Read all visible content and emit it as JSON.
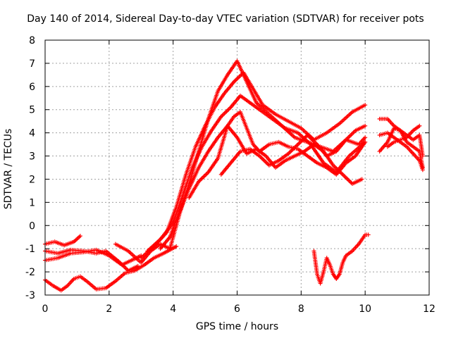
{
  "chart_data": {
    "type": "scatter",
    "title": "Day 140 of 2014, Sidereal Day-to-day VTEC variation (SDTVAR) for receiver pots",
    "xlabel": "GPS time / hours",
    "ylabel": "SDTVAR / TECUs",
    "xlim": [
      0,
      12
    ],
    "ylim": [
      -3,
      8
    ],
    "xticks": [
      "0",
      "2",
      "4",
      "6",
      "8",
      "10",
      "12"
    ],
    "yticks": [
      "-3",
      "-2",
      "-1",
      "0",
      "1",
      "2",
      "3",
      "4",
      "5",
      "6",
      "7",
      "8"
    ],
    "grid": true,
    "marker": "+",
    "color": "#ff0000",
    "series": [
      {
        "x": [
          0,
          0.3,
          0.6,
          0.9,
          1.1
        ],
        "y": [
          -0.8,
          -0.7,
          -0.85,
          -0.7,
          -0.45
        ]
      },
      {
        "x": [
          0,
          0.4,
          0.8,
          1.2,
          1.6,
          2.0,
          2.4,
          2.7,
          3.0
        ],
        "y": [
          -1.5,
          -1.4,
          -1.2,
          -1.15,
          -1.05,
          -1.3,
          -1.7,
          -1.5,
          -1.3
        ]
      },
      {
        "x": [
          0,
          0.4,
          0.8,
          1.2,
          1.6,
          1.9,
          2.3,
          2.6,
          2.9
        ],
        "y": [
          -1.1,
          -1.2,
          -1.05,
          -1.1,
          -1.2,
          -1.1,
          -1.55,
          -1.95,
          -1.75
        ]
      },
      {
        "x": [
          0,
          0.25,
          0.5,
          0.7,
          0.9,
          1.1,
          1.3,
          1.6,
          1.9,
          2.2,
          2.5,
          2.8,
          3.1,
          3.4,
          3.7,
          3.9,
          4.1
        ],
        "y": [
          -2.35,
          -2.6,
          -2.8,
          -2.6,
          -2.3,
          -2.2,
          -2.4,
          -2.75,
          -2.7,
          -2.4,
          -2.05,
          -1.95,
          -1.7,
          -1.4,
          -1.2,
          -1.05,
          -0.9
        ]
      },
      {
        "x": [
          2.2,
          2.6,
          3.0,
          3.3,
          3.6,
          3.9,
          4.2,
          4.5,
          4.8,
          5.1,
          5.4,
          5.7,
          6.0,
          6.3,
          6.6,
          7.0,
          7.4,
          7.8,
          8.2,
          8.6,
          9.0,
          9.4,
          9.8,
          10.0
        ],
        "y": [
          -0.8,
          -1.1,
          -1.6,
          -1.1,
          -0.8,
          -1.0,
          0.5,
          1.8,
          3.2,
          4.6,
          5.8,
          6.5,
          7.1,
          6.2,
          5.3,
          4.8,
          4.3,
          3.8,
          3.6,
          3.4,
          3.2,
          3.7,
          3.5,
          3.8
        ]
      },
      {
        "x": [
          3.0,
          3.4,
          3.8,
          4.1,
          4.4,
          4.7,
          5.0,
          5.3,
          5.6,
          5.9,
          6.2,
          6.5,
          6.8,
          7.2,
          7.6,
          8.0,
          8.4,
          8.8,
          9.2,
          9.6,
          10.0
        ],
        "y": [
          -1.4,
          -0.9,
          -0.3,
          0.8,
          2.2,
          3.4,
          4.3,
          5.1,
          5.7,
          6.2,
          6.6,
          5.9,
          5.2,
          4.8,
          4.5,
          4.2,
          3.7,
          4.0,
          4.4,
          4.9,
          5.2
        ]
      },
      {
        "x": [
          3.2,
          3.6,
          4.0,
          4.3,
          4.6,
          4.9,
          5.2,
          5.5,
          5.8,
          6.1,
          6.4,
          6.7,
          7.1,
          7.5,
          7.9,
          8.3,
          8.7,
          9.1,
          9.5,
          10.0
        ],
        "y": [
          -1.1,
          -0.6,
          0.1,
          1.3,
          2.5,
          3.4,
          4.1,
          4.7,
          5.1,
          5.6,
          5.3,
          5.0,
          4.6,
          4.2,
          4.0,
          3.5,
          2.7,
          2.3,
          3.0,
          3.6
        ]
      },
      {
        "x": [
          3.6,
          3.9,
          4.2,
          4.5,
          4.8,
          5.1,
          5.4,
          5.7,
          5.9,
          6.1,
          6.3,
          6.5,
          6.7,
          7.0,
          7.3,
          7.6,
          7.9,
          8.2,
          8.5,
          8.8,
          9.1,
          9.4,
          9.7,
          10.0
        ],
        "y": [
          -1.0,
          -0.5,
          0.6,
          1.6,
          2.5,
          3.2,
          3.8,
          4.3,
          4.7,
          4.9,
          4.2,
          3.5,
          3.2,
          3.5,
          3.6,
          3.4,
          3.3,
          3.0,
          2.7,
          2.5,
          2.2,
          2.7,
          3.0,
          3.6
        ]
      },
      {
        "x": [
          4.5,
          4.8,
          5.1,
          5.4,
          5.7,
          6.0,
          6.3,
          6.6,
          6.9,
          7.2,
          7.5,
          7.8,
          8.1,
          8.4,
          8.7,
          9.0,
          9.3,
          9.6,
          9.9
        ],
        "y": [
          1.2,
          1.9,
          2.3,
          2.9,
          4.3,
          3.8,
          3.1,
          3.3,
          3.0,
          2.5,
          2.8,
          3.0,
          3.2,
          3.5,
          3.2,
          2.6,
          2.2,
          1.8,
          2.0
        ]
      },
      {
        "x": [
          5.5,
          5.8,
          6.1,
          6.4,
          6.7,
          7.0,
          7.3,
          7.6,
          7.9,
          8.2,
          8.5,
          8.8,
          9.1,
          9.4,
          9.7,
          10.0
        ],
        "y": [
          2.2,
          2.7,
          3.2,
          3.3,
          3.0,
          2.6,
          2.8,
          3.1,
          3.5,
          3.9,
          3.5,
          3.0,
          3.2,
          3.7,
          4.1,
          4.3
        ]
      },
      {
        "x": [
          8.4,
          8.5,
          8.6,
          8.7,
          8.8,
          8.9,
          9.0,
          9.1,
          9.2,
          9.3,
          9.4,
          9.6,
          9.8,
          10.0,
          10.1
        ],
        "y": [
          -1.1,
          -2.1,
          -2.5,
          -2.0,
          -1.4,
          -1.7,
          -2.1,
          -2.3,
          -2.1,
          -1.6,
          -1.3,
          -1.1,
          -0.8,
          -0.4,
          -0.4
        ]
      },
      {
        "x": [
          10.45,
          10.7,
          10.9,
          11.1,
          11.3,
          11.5,
          11.7,
          11.8
        ],
        "y": [
          4.6,
          4.6,
          4.3,
          4.1,
          3.9,
          3.7,
          3.9,
          3.0
        ]
      },
      {
        "x": [
          10.45,
          10.7,
          10.9,
          11.1,
          11.3,
          11.5,
          11.7,
          11.8
        ],
        "y": [
          3.2,
          3.6,
          4.2,
          4.1,
          3.6,
          3.4,
          3.2,
          2.5
        ]
      },
      {
        "x": [
          10.45,
          10.7,
          10.9,
          11.1,
          11.3,
          11.5,
          11.7,
          11.8
        ],
        "y": [
          3.9,
          4.0,
          3.8,
          3.6,
          3.4,
          3.1,
          2.8,
          2.4
        ]
      },
      {
        "x": [
          10.7,
          10.9,
          11.1,
          11.3,
          11.5,
          11.7
        ],
        "y": [
          3.4,
          3.6,
          3.7,
          3.8,
          4.1,
          4.3
        ]
      }
    ]
  }
}
